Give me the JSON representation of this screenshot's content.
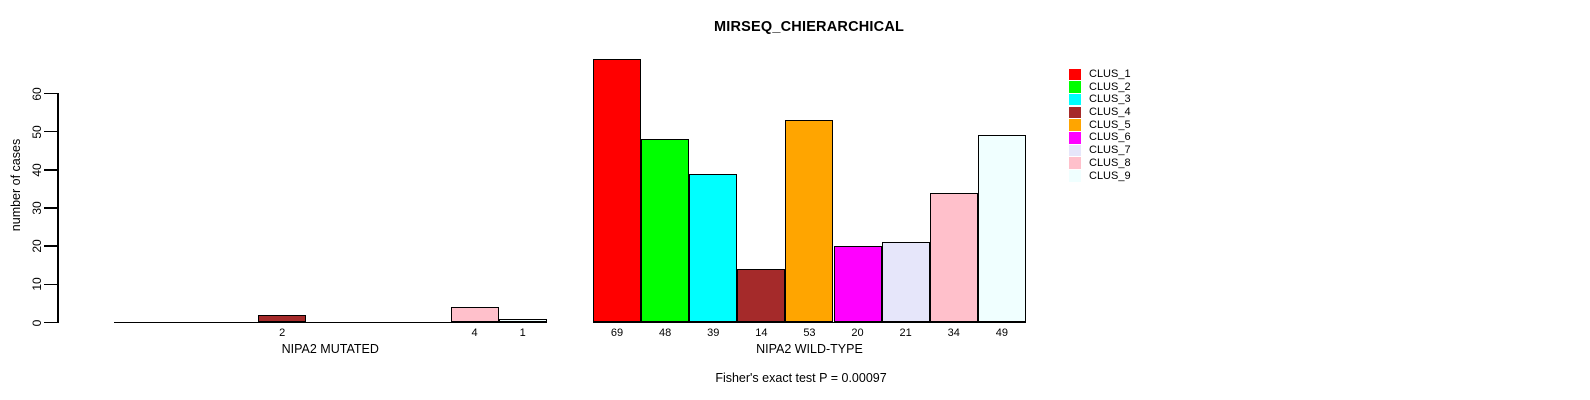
{
  "chart_data": {
    "type": "bar",
    "title": "MIRSEQ_CHIERARCHICAL",
    "ylabel": "number of cases",
    "xlabel": "",
    "yticks": [
      0,
      10,
      20,
      30,
      40,
      50,
      60
    ],
    "ylim": [
      0,
      69
    ],
    "grid": false,
    "legend_position": "right",
    "bar_outline_color": "#000000",
    "clusters": [
      {
        "name": "CLUS_1",
        "color": "#FF0000"
      },
      {
        "name": "CLUS_2",
        "color": "#00FF00"
      },
      {
        "name": "CLUS_3",
        "color": "#00FFFF"
      },
      {
        "name": "CLUS_4",
        "color": "#A52A2A"
      },
      {
        "name": "CLUS_5",
        "color": "#FFA500"
      },
      {
        "name": "CLUS_6",
        "color": "#FF00FF"
      },
      {
        "name": "CLUS_7",
        "color": "#E6E6FA"
      },
      {
        "name": "CLUS_8",
        "color": "#FFC0CB"
      },
      {
        "name": "CLUS_9",
        "color": "#F0FFFF"
      }
    ],
    "groups": [
      {
        "label": "NIPA2 MUTATED",
        "values": [
          0,
          0,
          0,
          2,
          0,
          0,
          0,
          4,
          1
        ]
      },
      {
        "label": "NIPA2 WILD-TYPE",
        "values": [
          69,
          48,
          39,
          14,
          53,
          20,
          21,
          34,
          49
        ]
      }
    ],
    "annotation": "Fisher's exact test P = 0.00097"
  }
}
